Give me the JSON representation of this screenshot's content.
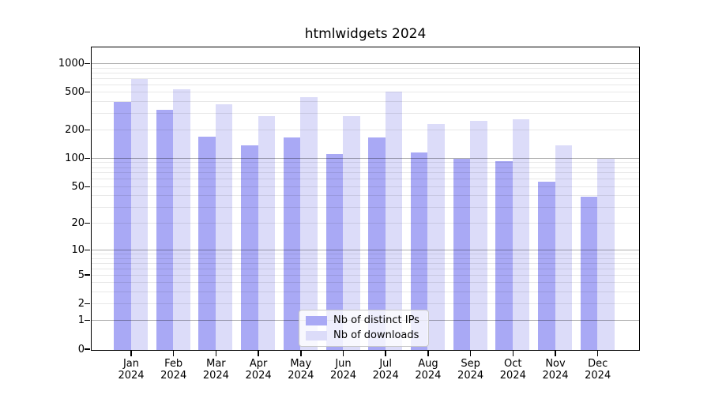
{
  "title": "htmlwidgets 2024",
  "colors": {
    "bar_ips": "#a9a9f5",
    "bar_downloads": "#dcdcf9",
    "grid_major": "rgba(0,0,0,0.32)",
    "grid_minor": "rgba(0,0,0,0.09)",
    "axis": "#000000",
    "legend_border": "#c8c8c8"
  },
  "legend": {
    "items": [
      {
        "label": "Nb of distinct IPs",
        "color_key": "bar_ips"
      },
      {
        "label": "Nb of downloads",
        "color_key": "bar_downloads"
      }
    ],
    "position": "lower center"
  },
  "chart_data": {
    "type": "bar",
    "title": "htmlwidgets 2024",
    "categories": [
      "Jan 2024",
      "Feb 2024",
      "Mar 2024",
      "Apr 2024",
      "May 2024",
      "Jun 2024",
      "Jul 2024",
      "Aug 2024",
      "Sep 2024",
      "Oct 2024",
      "Nov 2024",
      "Dec 2024"
    ],
    "series": [
      {
        "name": "Nb of distinct IPs",
        "values": [
          400,
          330,
          172,
          140,
          167,
          112,
          167,
          116,
          100,
          95,
          57,
          39
        ]
      },
      {
        "name": "Nb of downloads",
        "values": [
          700,
          545,
          378,
          285,
          450,
          280,
          510,
          235,
          252,
          260,
          140,
          100
        ]
      }
    ],
    "xlabel": "",
    "ylabel": "",
    "yticks": [
      0,
      1,
      2,
      5,
      10,
      20,
      50,
      100,
      200,
      500,
      1000
    ],
    "yscale": "log1p",
    "ylim": [
      0,
      1200
    ],
    "grid": true,
    "legend_position": "lower center"
  }
}
